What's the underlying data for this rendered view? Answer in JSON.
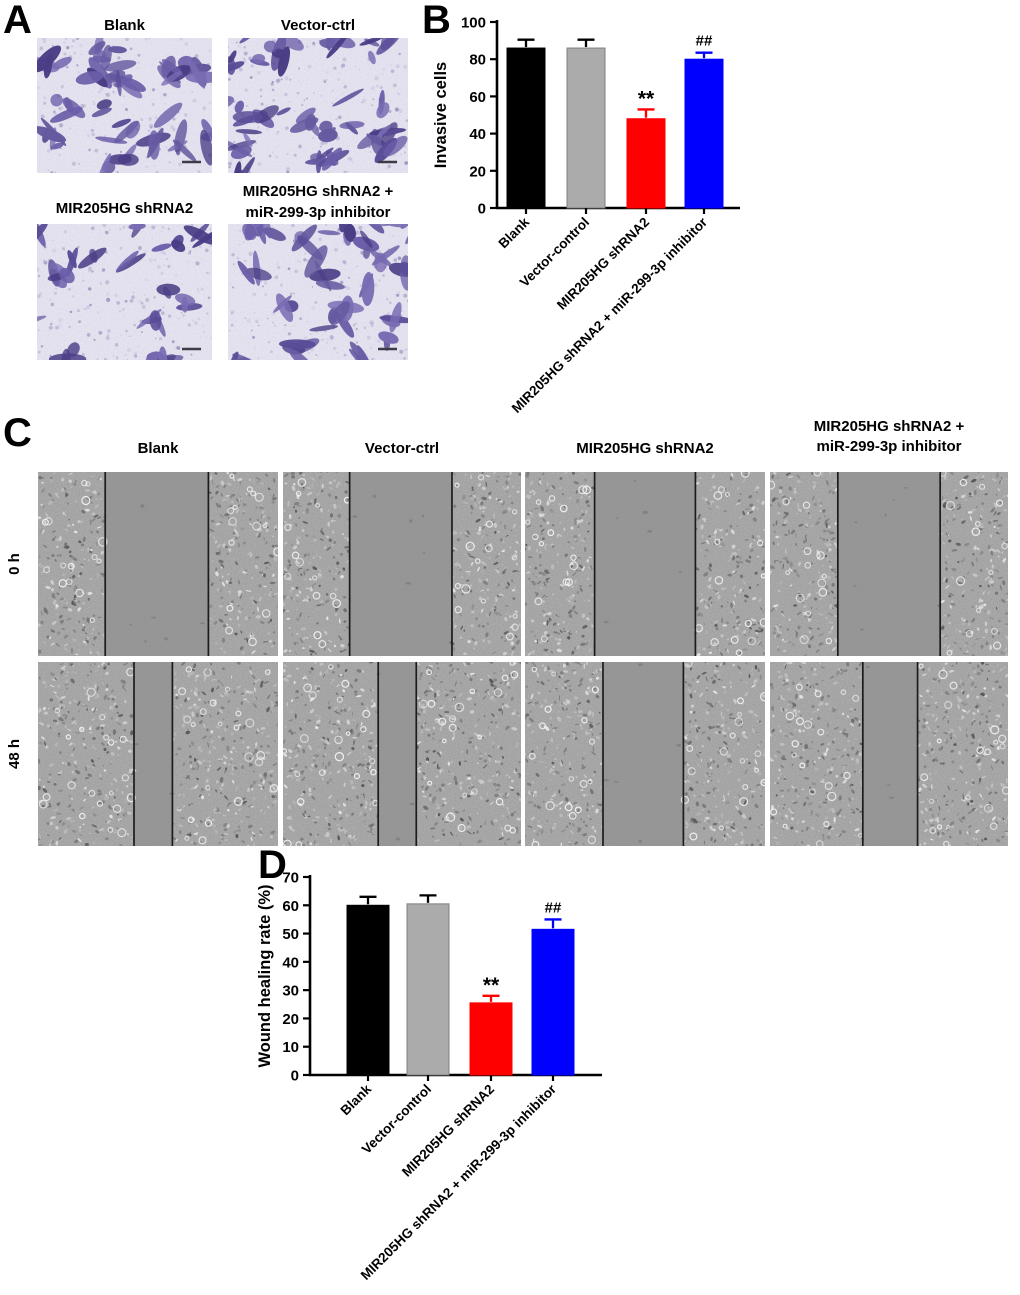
{
  "panels": {
    "A": {
      "label": "A",
      "image_titles": [
        [
          "Blank"
        ],
        [
          "Vector-ctrl"
        ],
        [
          "MIR205HG shRNA2"
        ],
        [
          "MIR205HG shRNA2 +",
          "miR-299-3p inhibitor"
        ]
      ]
    },
    "B": {
      "label": "B"
    },
    "C": {
      "label": "C",
      "column_titles": [
        [
          "Blank"
        ],
        [
          "Vector-ctrl"
        ],
        [
          "MIR205HG shRNA2"
        ],
        [
          "MIR205HG shRNA2 +",
          "miR-299-3p inhibitor"
        ]
      ],
      "row_titles": [
        "0 h",
        "48 h"
      ],
      "wound_gaps": [
        [
          [
            0.28,
            0.71
          ],
          [
            0.28,
            0.71
          ],
          [
            0.29,
            0.71
          ],
          [
            0.285,
            0.715
          ]
        ],
        [
          [
            0.4,
            0.56
          ],
          [
            0.4,
            0.56
          ],
          [
            0.325,
            0.66
          ],
          [
            0.39,
            0.62
          ]
        ]
      ]
    },
    "D": {
      "label": "D"
    }
  },
  "chart_data": [
    {
      "panel": "B",
      "type": "bar",
      "categories": [
        "Blank",
        "Vector-control",
        "MIR205HG shRNA2",
        "MIR205HG shRNA2 + miR-299-3p inhibitor"
      ],
      "values": [
        86,
        86,
        48,
        80
      ],
      "errors": [
        4.5,
        4.5,
        5,
        3.5
      ],
      "annotations": [
        "",
        "",
        "**",
        "##"
      ],
      "bar_colors": [
        "#000000",
        "#ababab",
        "#ff0000",
        "#0000ff"
      ],
      "error_colors": [
        "#000000",
        "#000000",
        "#ff0000",
        "#0000ff"
      ],
      "title": "",
      "xlabel": "",
      "ylabel": "Invasive cells",
      "ylim": [
        0,
        100
      ],
      "yticks": [
        0,
        20,
        40,
        60,
        80,
        100
      ],
      "grid": false,
      "legend": "none"
    },
    {
      "panel": "D",
      "type": "bar",
      "categories": [
        "Blank",
        "Vector-control",
        "MIR205HG shRNA2",
        "MIR205HG shRNA2 + miR-299-3p inhibitor"
      ],
      "values": [
        60,
        60.5,
        25.5,
        51.5
      ],
      "errors": [
        3,
        3,
        2.5,
        3.5
      ],
      "annotations": [
        "",
        "",
        "**",
        "##"
      ],
      "bar_colors": [
        "#000000",
        "#ababab",
        "#ff0000",
        "#0000ff"
      ],
      "error_colors": [
        "#000000",
        "#000000",
        "#ff0000",
        "#0000ff"
      ],
      "title": "",
      "xlabel": "",
      "ylabel": "Wound healing rate (%)",
      "ylim": [
        0,
        70
      ],
      "yticks": [
        0,
        10,
        20,
        30,
        40,
        50,
        60,
        70
      ],
      "grid": false,
      "legend": "none"
    }
  ]
}
